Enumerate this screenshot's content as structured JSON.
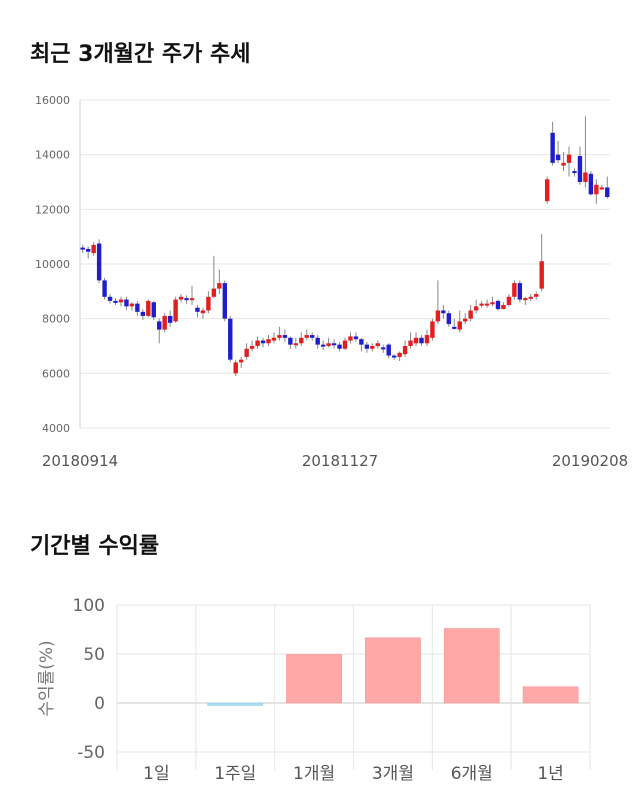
{
  "section_titles": {
    "trend": "최근 3개월간 주가 추세",
    "returns": "기간별 수익률"
  },
  "colors": {
    "up": "#e31e1e",
    "down": "#1e1ecc",
    "positive_bar": "#ffa8a8",
    "negative_bar": "#a8dcef",
    "grid": "#e6e6e6"
  },
  "chart_data": [
    {
      "type": "candlestick",
      "title": "최근 3개월간 주가 추세",
      "ylim": [
        4000,
        16000
      ],
      "yticks": [
        "4000",
        "6000",
        "8000",
        "10000",
        "12000",
        "14000",
        "16000"
      ],
      "ytick_values": [
        4000,
        6000,
        8000,
        10000,
        12000,
        14000,
        16000
      ],
      "xtick_labels": [
        "20180914",
        "20181127",
        "20190208"
      ],
      "grid": true,
      "ohlc": [
        [
          10600,
          10550,
          10700,
          10400
        ],
        [
          10550,
          10450,
          10650,
          10200
        ],
        [
          10400,
          10700,
          10800,
          10300
        ],
        [
          10750,
          9400,
          10900,
          9300
        ],
        [
          9400,
          8800,
          9500,
          8700
        ],
        [
          8800,
          8650,
          8900,
          8550
        ],
        [
          8650,
          8600,
          8750,
          8500
        ],
        [
          8600,
          8700,
          8800,
          8450
        ],
        [
          8700,
          8450,
          8800,
          8300
        ],
        [
          8450,
          8550,
          8600,
          8300
        ],
        [
          8550,
          8250,
          8650,
          8100
        ],
        [
          8250,
          8100,
          8350,
          7950
        ],
        [
          8100,
          8650,
          8700,
          8050
        ],
        [
          8600,
          8050,
          8650,
          7950
        ],
        [
          7900,
          7600,
          8000,
          7100
        ],
        [
          7600,
          8100,
          8200,
          7500
        ],
        [
          8100,
          7850,
          8300,
          7700
        ],
        [
          7900,
          8700,
          8800,
          7850
        ],
        [
          8700,
          8800,
          8900,
          8600
        ],
        [
          8750,
          8700,
          8850,
          8550
        ],
        [
          8700,
          8750,
          9200,
          8500
        ],
        [
          8400,
          8250,
          8500,
          8050
        ],
        [
          8200,
          8300,
          8400,
          8000
        ],
        [
          8300,
          8800,
          9000,
          8200
        ],
        [
          8800,
          9100,
          10300,
          8750
        ],
        [
          9100,
          9300,
          9800,
          8900
        ],
        [
          9300,
          8000,
          9400,
          7900
        ],
        [
          8000,
          6500,
          8100,
          6400
        ],
        [
          6000,
          6400,
          6500,
          5900
        ],
        [
          6400,
          6500,
          6600,
          6200
        ],
        [
          6600,
          6900,
          7100,
          6500
        ],
        [
          6900,
          7000,
          7200,
          6800
        ],
        [
          7000,
          7200,
          7350,
          6900
        ],
        [
          7200,
          7100,
          7300,
          6950
        ],
        [
          7100,
          7250,
          7400,
          7000
        ],
        [
          7200,
          7300,
          7500,
          7100
        ],
        [
          7300,
          7400,
          7700,
          7200
        ],
        [
          7400,
          7300,
          7600,
          7150
        ],
        [
          7300,
          7050,
          7350,
          6900
        ],
        [
          7050,
          7100,
          7300,
          6900
        ],
        [
          7100,
          7300,
          7500,
          7000
        ],
        [
          7300,
          7400,
          7600,
          7200
        ],
        [
          7400,
          7300,
          7500,
          7200
        ],
        [
          7300,
          7050,
          7400,
          6900
        ],
        [
          7050,
          7000,
          7200,
          6850
        ],
        [
          7000,
          7100,
          7300,
          6950
        ],
        [
          7100,
          7050,
          7250,
          6900
        ],
        [
          7050,
          6900,
          7150,
          6800
        ],
        [
          6900,
          7200,
          7300,
          6850
        ],
        [
          7200,
          7350,
          7500,
          7100
        ],
        [
          7350,
          7250,
          7500,
          7150
        ],
        [
          7250,
          7050,
          7300,
          6800
        ],
        [
          7050,
          6900,
          7150,
          6750
        ],
        [
          6900,
          7000,
          7100,
          6800
        ],
        [
          7000,
          7100,
          7200,
          6900
        ],
        [
          6950,
          6900,
          7050,
          6750
        ],
        [
          7050,
          6650,
          7100,
          6550
        ],
        [
          6650,
          6600,
          6700,
          6500
        ],
        [
          6600,
          6750,
          6800,
          6450
        ],
        [
          6700,
          7000,
          7200,
          6600
        ],
        [
          7000,
          7200,
          7500,
          6900
        ],
        [
          7100,
          7300,
          7500,
          7000
        ],
        [
          7300,
          7100,
          7400,
          7000
        ],
        [
          7100,
          7400,
          7600,
          7000
        ],
        [
          7300,
          7900,
          8000,
          7200
        ],
        [
          7900,
          8300,
          9400,
          7800
        ],
        [
          8300,
          8200,
          8500,
          8000
        ],
        [
          8200,
          7800,
          8300,
          7700
        ],
        [
          7700,
          7650,
          8000,
          7600
        ],
        [
          7600,
          7900,
          8300,
          7500
        ],
        [
          7900,
          8000,
          8200,
          7800
        ],
        [
          8000,
          8300,
          8500,
          7900
        ],
        [
          8300,
          8450,
          8700,
          8200
        ],
        [
          8500,
          8550,
          8650,
          8400
        ],
        [
          8550,
          8550,
          8700,
          8400
        ],
        [
          8550,
          8600,
          8800,
          8450
        ],
        [
          8650,
          8350,
          8700,
          8300
        ],
        [
          8350,
          8500,
          8600,
          8350
        ],
        [
          8500,
          8800,
          8900,
          8450
        ],
        [
          8800,
          9300,
          9400,
          8700
        ],
        [
          9300,
          8700,
          9400,
          8600
        ],
        [
          8700,
          8750,
          8800,
          8500
        ],
        [
          8750,
          8800,
          8900,
          8650
        ],
        [
          8800,
          8900,
          9000,
          8700
        ],
        [
          9100,
          10100,
          11100,
          9000
        ],
        [
          12300,
          13100,
          13200,
          12200
        ],
        [
          14800,
          13700,
          15200,
          13600
        ],
        [
          14000,
          13800,
          14500,
          13700
        ],
        [
          13600,
          13700,
          14100,
          13400
        ],
        [
          13700,
          14000,
          14300,
          13200
        ],
        [
          13400,
          13350,
          13500,
          13200
        ],
        [
          13950,
          13000,
          14300,
          12900
        ],
        [
          13000,
          13350,
          15400,
          12800
        ],
        [
          13300,
          12550,
          13400,
          12500
        ],
        [
          12550,
          12900,
          13100,
          12200
        ],
        [
          12800,
          12800,
          12900,
          12700
        ],
        [
          12800,
          12450,
          13200,
          12400
        ]
      ]
    },
    {
      "type": "bar",
      "title": "기간별 수익률",
      "ylabel": "수익률(%)",
      "ylim": [
        -50,
        100
      ],
      "yticks": [
        "100",
        "50",
        "0",
        "-50"
      ],
      "ytick_values": [
        100,
        50,
        0,
        -50
      ],
      "categories": [
        "1일",
        "1주일",
        "1개월",
        "3개월",
        "6개월",
        "1년"
      ],
      "values": [
        0,
        -2.5,
        49.5,
        66.5,
        76,
        16.5
      ],
      "grid": true
    }
  ]
}
